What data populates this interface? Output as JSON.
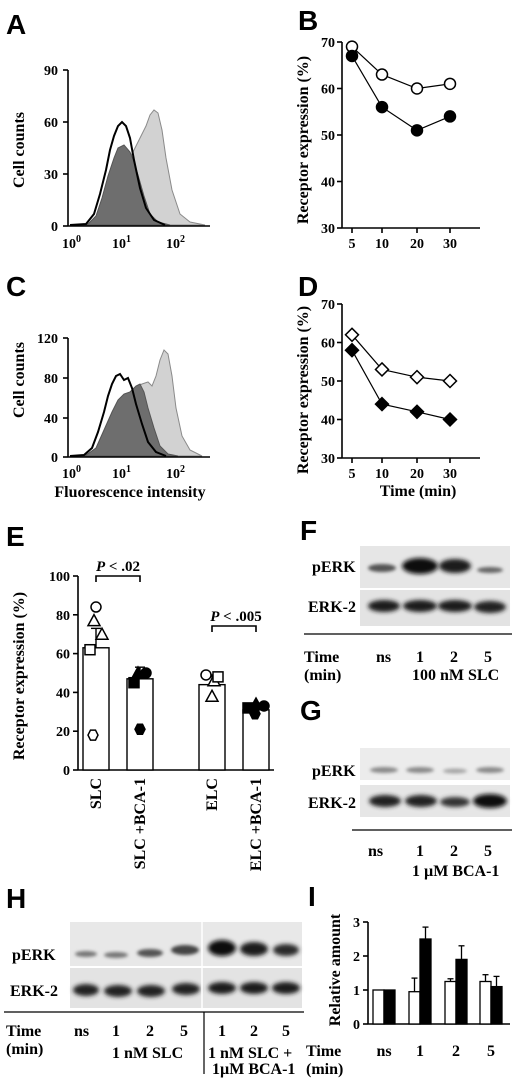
{
  "panels": {
    "A": "A",
    "B": "B",
    "C": "C",
    "D": "D",
    "E": "E",
    "F": "F",
    "G": "G",
    "H": "H",
    "I": "I"
  },
  "axis_text": {
    "cell_counts": "Cell counts",
    "receptor_expression": "Receptor expression (%)",
    "fluorescence_intensity": "Fluorescence intensity",
    "time_min": "Time (min)",
    "relative_amount": "Relative amount",
    "ten": "10",
    "exp0": "0",
    "exp1": "1",
    "exp2": "2"
  },
  "blots": {
    "pERK": "pERK",
    "ERK2": "ERK-2",
    "time_label": "Time",
    "min_label": "(min)",
    "ns": "ns",
    "t1": "1",
    "t2": "2",
    "t5": "5",
    "F_treatment": "100 nM SLC",
    "G_treatment": "1 µM BCA-1",
    "H_treatment1": "1 nM SLC",
    "H_treatment2a": "1 nM SLC +",
    "H_treatment2b": "1µM BCA-1"
  },
  "stats": {
    "p1": "P < .02",
    "p2": "P < .005"
  },
  "chart_data": [
    {
      "panel": "A",
      "type": "histogram",
      "xlabel": "",
      "ylabel": "Cell counts",
      "yticks": [
        0,
        30,
        60,
        90
      ],
      "xticks": [
        "10^0",
        "10^1",
        "10^2"
      ]
    },
    {
      "panel": "B",
      "type": "line",
      "ylabel": "Receptor expression (%)",
      "x": [
        5,
        10,
        20,
        30
      ],
      "ylim": [
        30,
        70
      ],
      "yticks": [
        30,
        40,
        50,
        60,
        70
      ],
      "series": [
        {
          "marker": "open-circle",
          "values": [
            69,
            63,
            60,
            61
          ]
        },
        {
          "marker": "filled-circle",
          "values": [
            67,
            56,
            51,
            54
          ]
        }
      ]
    },
    {
      "panel": "C",
      "type": "histogram",
      "xlabel": "Fluorescence intensity",
      "ylabel": "Cell counts",
      "yticks": [
        0,
        40,
        80,
        120
      ],
      "xticks": [
        "10^0",
        "10^1",
        "10^2"
      ]
    },
    {
      "panel": "D",
      "type": "line",
      "xlabel": "Time (min)",
      "ylabel": "Receptor expression (%)",
      "x": [
        5,
        10,
        20,
        30
      ],
      "ylim": [
        30,
        70
      ],
      "yticks": [
        30,
        40,
        50,
        60,
        70
      ],
      "series": [
        {
          "marker": "open-diamond",
          "values": [
            62,
            53,
            51,
            50
          ]
        },
        {
          "marker": "filled-diamond",
          "values": [
            58,
            44,
            42,
            40
          ]
        }
      ]
    },
    {
      "panel": "E",
      "type": "bar",
      "ylabel": "Receptor expression (%)",
      "categories": [
        "SLC",
        "SLC +BCA-1",
        "ELC",
        "ELC +BCA-1"
      ],
      "values": [
        63,
        47,
        44,
        31
      ],
      "errors": [
        10,
        6,
        5,
        3
      ],
      "ylim": [
        0,
        100
      ],
      "yticks": [
        0,
        20,
        40,
        60,
        80,
        100
      ]
    },
    {
      "panel": "I",
      "type": "bar",
      "ylabel": "Relative amount",
      "categories": [
        "ns",
        "1",
        "2",
        "5"
      ],
      "series": [
        {
          "fill": "white",
          "values": [
            1.0,
            0.95,
            1.25,
            1.25
          ],
          "errors": [
            0,
            0.4,
            0.08,
            0.2
          ]
        },
        {
          "fill": "black",
          "values": [
            1.0,
            2.5,
            1.9,
            1.1
          ],
          "errors": [
            0,
            0.35,
            0.4,
            0.3
          ]
        }
      ],
      "ylim": [
        0,
        3
      ],
      "yticks": [
        0,
        1,
        2,
        3
      ]
    }
  ]
}
